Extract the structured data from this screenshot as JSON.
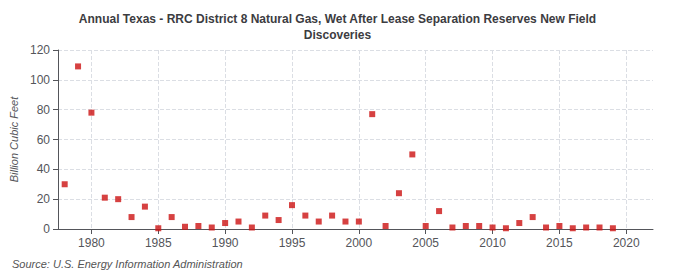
{
  "chart_data": {
    "type": "scatter",
    "title": "Annual Texas - RRC District 8 Natural Gas, Wet After Lease Separation Reserves New Field\nDiscoveries",
    "ylabel": "Billion Cubic Feet",
    "annotations": [
      "Source: U.S. Energy Information Administration"
    ],
    "color": "#cc1111",
    "marker": "square",
    "grid": true,
    "xlim": [
      1977.5,
      2022
    ],
    "xticks": [
      1980,
      1985,
      1990,
      1995,
      2000,
      2005,
      2010,
      2015,
      2020
    ],
    "ylim": [
      0,
      120
    ],
    "yticks": [
      0,
      20,
      40,
      60,
      80,
      100,
      120
    ],
    "x": [
      1978,
      1979,
      1980,
      1981,
      1982,
      1983,
      1984,
      1985,
      1986,
      1987,
      1988,
      1989,
      1990,
      1991,
      1992,
      1993,
      1994,
      1995,
      1996,
      1997,
      1998,
      1999,
      2000,
      2001,
      2002,
      2003,
      2004,
      2005,
      2006,
      2007,
      2008,
      2009,
      2010,
      2011,
      2012,
      2013,
      2014,
      2015,
      2016,
      2017,
      2018,
      2019
    ],
    "values": [
      30,
      109,
      78,
      21,
      20,
      8,
      15,
      0.5,
      8,
      1.5,
      2,
      1,
      4,
      5,
      1,
      9,
      6,
      16,
      9,
      5,
      9,
      5,
      5,
      77,
      2,
      24,
      50,
      2,
      12,
      1,
      2,
      2,
      1,
      0.5,
      4,
      8,
      1,
      2,
      0.5,
      1,
      1,
      0.5
    ]
  }
}
